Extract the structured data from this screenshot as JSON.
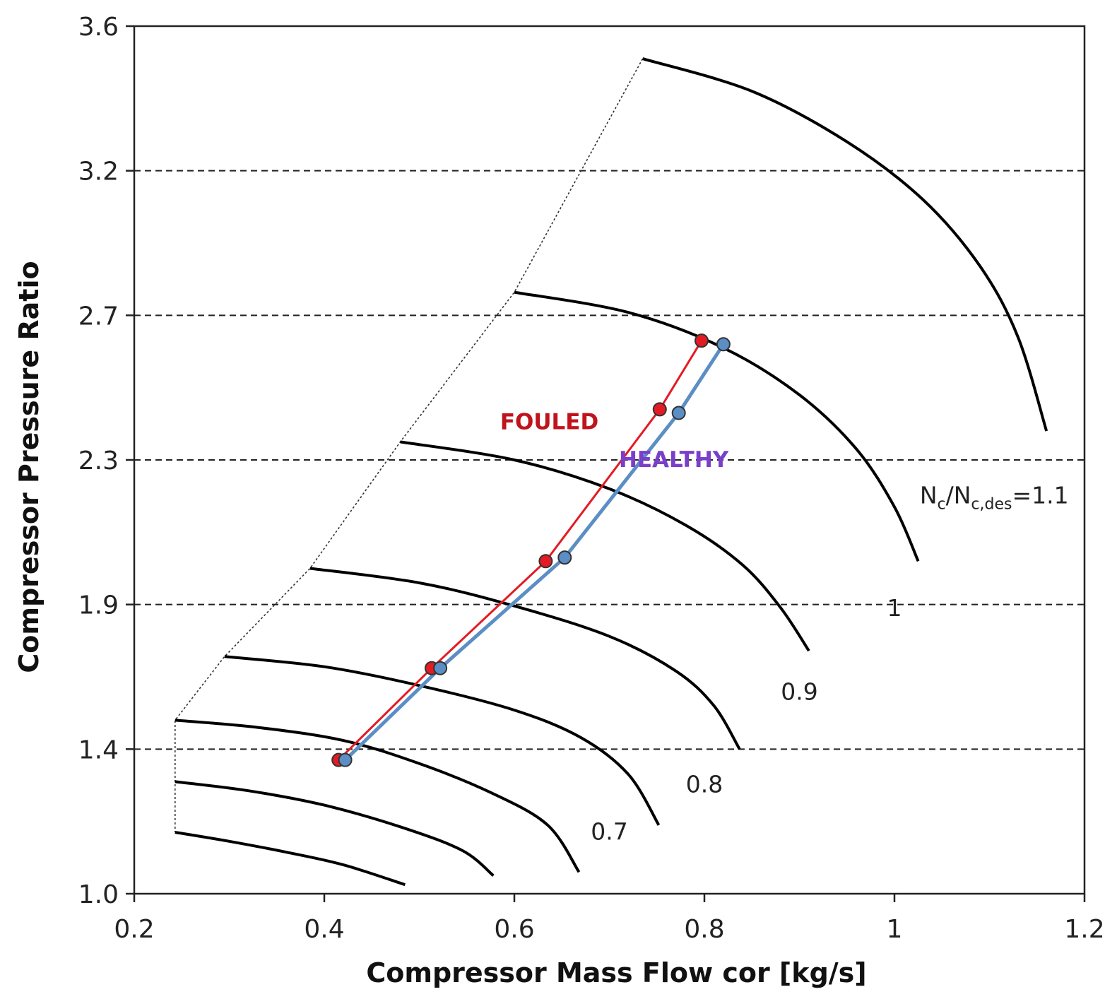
{
  "chart_data": {
    "type": "line",
    "xlabel": "Compressor Mass Flow cor [kg/s]",
    "ylabel": "Compressor Pressure Ratio",
    "xlim": [
      0.2,
      1.2
    ],
    "ylim": [
      1.0,
      3.6
    ],
    "x_ticks": [
      0.2,
      0.4,
      0.6,
      0.8,
      1,
      1.2
    ],
    "x_tick_labels": [
      "0.2",
      "0.4",
      "0.6",
      "0.8",
      "1",
      "1.2"
    ],
    "y_ticks": [
      1.0,
      1.4,
      1.9,
      2.3,
      2.7,
      3.2,
      3.6
    ],
    "y_tick_labels": [
      "1.0",
      "1.4",
      "1.9",
      "2.3",
      "2.7",
      "3.2",
      "3.6"
    ],
    "horizontal_grid": true,
    "grid_style": "dashed",
    "speed_line_label_prefix": "N",
    "speed_line_label_sub": "c",
    "speed_line_label_mid": "/N",
    "speed_line_label_sub2": "c,des",
    "speed_line_label_suffix": "=1.1",
    "speed_lines": [
      {
        "label": "",
        "points": [
          [
            0.243,
            1.17
          ],
          [
            0.3,
            1.145
          ],
          [
            0.36,
            1.115
          ],
          [
            0.42,
            1.08
          ],
          [
            0.485,
            1.025
          ]
        ]
      },
      {
        "label": "",
        "points": [
          [
            0.243,
            1.31
          ],
          [
            0.32,
            1.285
          ],
          [
            0.4,
            1.245
          ],
          [
            0.48,
            1.185
          ],
          [
            0.545,
            1.12
          ],
          [
            0.578,
            1.05
          ]
        ]
      },
      {
        "label": "",
        "points": [
          [
            0.243,
            1.5
          ],
          [
            0.33,
            1.475
          ],
          [
            0.42,
            1.43
          ],
          [
            0.5,
            1.36
          ],
          [
            0.575,
            1.28
          ],
          [
            0.635,
            1.19
          ],
          [
            0.668,
            1.06
          ]
        ]
      },
      {
        "label": "0.7",
        "points": [
          [
            0.295,
            1.72
          ],
          [
            0.4,
            1.685
          ],
          [
            0.5,
            1.62
          ],
          [
            0.6,
            1.535
          ],
          [
            0.67,
            1.44
          ],
          [
            0.72,
            1.33
          ],
          [
            0.752,
            1.19
          ]
        ]
      },
      {
        "label": "0.8",
        "points": [
          [
            0.385,
            2.0
          ],
          [
            0.5,
            1.96
          ],
          [
            0.6,
            1.895
          ],
          [
            0.7,
            1.79
          ],
          [
            0.77,
            1.67
          ],
          [
            0.81,
            1.55
          ],
          [
            0.837,
            1.4
          ]
        ]
      },
      {
        "label": "0.9",
        "points": [
          [
            0.48,
            2.35
          ],
          [
            0.6,
            2.3
          ],
          [
            0.7,
            2.22
          ],
          [
            0.78,
            2.12
          ],
          [
            0.84,
            2.01
          ],
          [
            0.88,
            1.89
          ],
          [
            0.91,
            1.74
          ]
        ]
      },
      {
        "label": "1",
        "points": [
          [
            0.6,
            2.78
          ],
          [
            0.72,
            2.71
          ],
          [
            0.82,
            2.61
          ],
          [
            0.9,
            2.48
          ],
          [
            0.96,
            2.33
          ],
          [
            1.0,
            2.17
          ],
          [
            1.025,
            2.02
          ]
        ]
      },
      {
        "label": "",
        "points": [
          [
            0.735,
            3.51
          ],
          [
            0.85,
            3.42
          ],
          [
            0.95,
            3.28
          ],
          [
            1.03,
            3.1
          ],
          [
            1.09,
            2.87
          ],
          [
            1.13,
            2.64
          ],
          [
            1.16,
            2.38
          ]
        ]
      }
    ],
    "speed_label_positions": [
      [
        0.7,
        1.15
      ],
      [
        0.8,
        1.28
      ],
      [
        0.9,
        1.57
      ],
      [
        1,
        1.86
      ]
    ],
    "surge_line": [
      [
        0.735,
        3.51
      ],
      [
        0.6,
        2.78
      ],
      [
        0.48,
        2.35
      ],
      [
        0.385,
        2.0
      ],
      [
        0.295,
        1.72
      ],
      [
        0.243,
        1.5
      ],
      [
        0.243,
        1.31
      ],
      [
        0.243,
        1.17
      ]
    ],
    "series": [
      {
        "name": "FOULED",
        "color": "#e31b23",
        "points": [
          [
            0.415,
            1.37
          ],
          [
            0.513,
            1.68
          ],
          [
            0.633,
            2.02
          ],
          [
            0.753,
            2.44
          ],
          [
            0.797,
            2.63
          ]
        ]
      },
      {
        "name": "HEALTHY",
        "color": "#5b8ec4",
        "points": [
          [
            0.422,
            1.37
          ],
          [
            0.522,
            1.68
          ],
          [
            0.653,
            2.03
          ],
          [
            0.773,
            2.43
          ],
          [
            0.82,
            2.62
          ]
        ]
      }
    ],
    "fouled_label_color": "#c0141c",
    "healthy_label_color": "#7a3fc9",
    "fouled_label_pos": [
      0.585,
      2.385
    ],
    "healthy_label_pos": [
      0.71,
      2.28
    ],
    "top_label_pos": [
      1.105,
      2.18
    ]
  }
}
